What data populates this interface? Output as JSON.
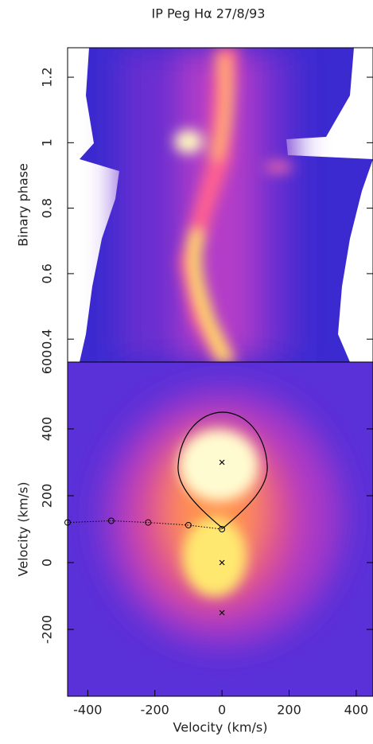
{
  "title": "IP Peg Hα 27/8/93",
  "chart_data": [
    {
      "type": "trailed-spectrum",
      "ylabel": "Binary phase",
      "ylim": [
        0.33,
        1.29
      ],
      "yticks": [
        0.4,
        0.6,
        0.8,
        1,
        1.2
      ]
    },
    {
      "type": "scatter",
      "xlabel": "Velocity (km/s)",
      "ylabel": "Velocity (km/s)",
      "xlim": [
        -460,
        450
      ],
      "ylim": [
        -400,
        600
      ],
      "xticks": [
        -400,
        -200,
        0,
        200,
        400
      ],
      "yticks": [
        -200,
        0,
        200,
        400,
        600
      ],
      "series": [
        {
          "marker": "x",
          "color": "#000000",
          "x": [
            0,
            0,
            0
          ],
          "values": [
            300,
            0,
            -150
          ]
        },
        {
          "marker": "o",
          "color": "#000000",
          "x": [
            -460,
            -330,
            -220,
            -100,
            0
          ],
          "values": [
            120,
            125,
            120,
            112,
            100
          ]
        }
      ]
    }
  ]
}
